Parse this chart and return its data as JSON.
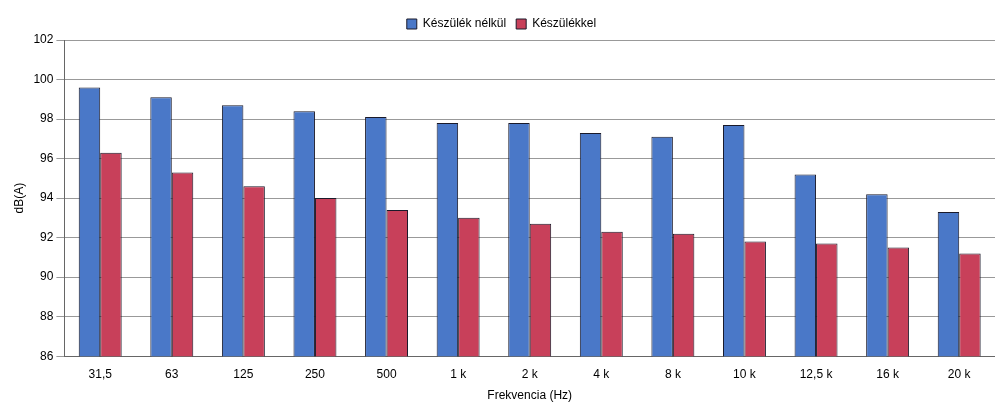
{
  "chart_data": {
    "type": "bar",
    "xlabel": "Frekvencia (Hz)",
    "ylabel": "dB(A)",
    "categories": [
      "31,5",
      "63",
      "125",
      "250",
      "500",
      "1 k",
      "2 k",
      "4 k",
      "8 k",
      "10 k",
      "12,5 k",
      "16 k",
      "20 k"
    ],
    "series": [
      {
        "name": "Készülék nélkül",
        "color": "#4a78c8",
        "values": [
          99.6,
          99.1,
          98.7,
          98.4,
          98.1,
          97.8,
          97.8,
          97.3,
          97.1,
          97.7,
          95.2,
          94.2,
          93.3
        ]
      },
      {
        "name": "Készülékkel",
        "color": "#c8405a",
        "values": [
          96.3,
          95.3,
          94.6,
          94.0,
          93.4,
          93.0,
          92.7,
          92.3,
          92.2,
          91.8,
          91.7,
          91.5,
          91.2
        ]
      }
    ],
    "ylim": [
      86,
      102
    ],
    "yticks": [
      86,
      88,
      90,
      92,
      94,
      96,
      98,
      100,
      102
    ],
    "grid": "y",
    "legend": "top"
  }
}
